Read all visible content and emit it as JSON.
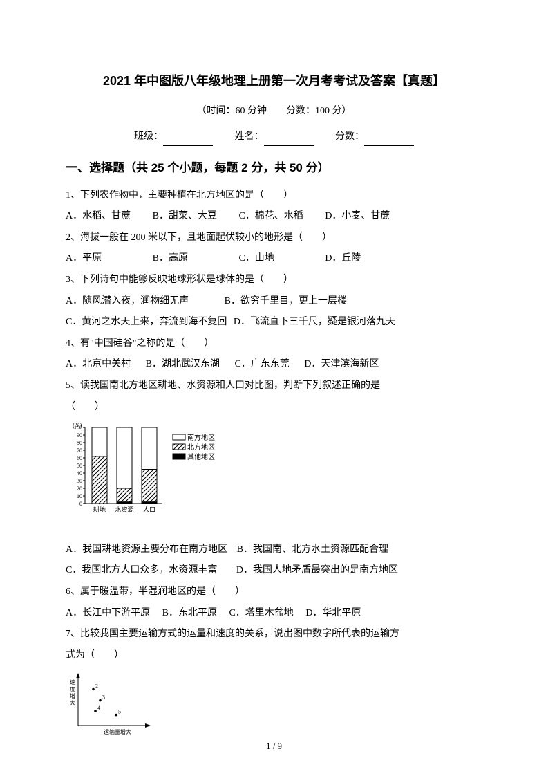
{
  "title": "2021 年中图版八年级地理上册第一次月考考试及答案【真题】",
  "subtitle": "（时间：60 分钟　　分数：100 分）",
  "info": {
    "class_label": "班级：",
    "name_label": "姓名：",
    "score_label": "分数："
  },
  "section1": {
    "header": "一、选择题（共 25 个小题，每题 2 分，共 50 分）",
    "q1": {
      "text": "1、下列农作物中，主要种植在北方地区的是（　　）",
      "optA": "A．水稻、甘蔗",
      "optB": "B．甜菜、大豆",
      "optC": "C．棉花、水稻",
      "optD": "D．小麦、甘蔗"
    },
    "q2": {
      "text": "2、海拔一般在 200 米以下，且地面起伏较小的地形是（　　）",
      "optA": "A．平原",
      "optB": "B．高原",
      "optC": "C．山地",
      "optD": "D．丘陵"
    },
    "q3": {
      "text": "3、下列诗句中能够反映地球形状是球体的是（　　）",
      "optA": "A．随风潜入夜，润物细无声",
      "optB": "B．欲穷千里目，更上一层楼",
      "optC": "C．黄河之水天上来，奔流到海不复回",
      "optD": "D．飞流直下三千尺，疑是银河落九天"
    },
    "q4": {
      "text": "4、有\"中国硅谷\"之称的是（　　）",
      "optA": "A．北京中关村",
      "optB": "B．湖北武汉东湖",
      "optC": "C．广东东莞",
      "optD": "D．天津滨海新区"
    },
    "q5": {
      "text1": "5、读我国南北方地区耕地、水资源和人口对比图，判断下列叙述正确的是",
      "text2": "（　　）",
      "optA": "A．我国耕地资源主要分布在南方地区",
      "optB": "B．我国南、北方水土资源匹配合理",
      "optC": "C．我国北方人口众多，水资源丰富",
      "optD": "D．我国人地矛盾最突出的是南方地区"
    },
    "q6": {
      "text": "6、属于暖温带，半湿润地区的是（　　）",
      "optA": "A．长江中下游平原",
      "optB": "B．东北平原",
      "optC": "C．塔里木盆地",
      "optD": "D．华北平原"
    },
    "q7": {
      "text1": "7、比较我国主要运输方式的运量和速度的关系，说出图中数字所代表的运输方",
      "text2": "式为（　　）"
    }
  },
  "bar_chart": {
    "y_axis": {
      "min": 0,
      "max": 100,
      "step": 10,
      "label": "(%)"
    },
    "categories": [
      "耕地",
      "水资源",
      "人口"
    ],
    "legend": [
      "南方地区",
      "北方地区",
      "其他地区"
    ],
    "series": {
      "south": {
        "values": [
          38,
          80,
          55
        ],
        "pattern": "white"
      },
      "north": {
        "values": [
          62,
          18,
          43
        ],
        "pattern": "hatch"
      },
      "other": {
        "values": [
          0,
          2,
          2
        ],
        "pattern": "black"
      }
    },
    "colors": {
      "border": "#000000",
      "hatch": "#000000",
      "solid": "#000000"
    }
  },
  "scatter_chart": {
    "x_label": "运输量增大",
    "y_label": "速度增大",
    "points": [
      {
        "id": "2",
        "x": 22,
        "y": 75
      },
      {
        "id": "3",
        "x": 32,
        "y": 52
      },
      {
        "id": "4",
        "x": 25,
        "y": 30
      },
      {
        "id": "5",
        "x": 55,
        "y": 22
      }
    ]
  },
  "page_number": "1 / 9"
}
